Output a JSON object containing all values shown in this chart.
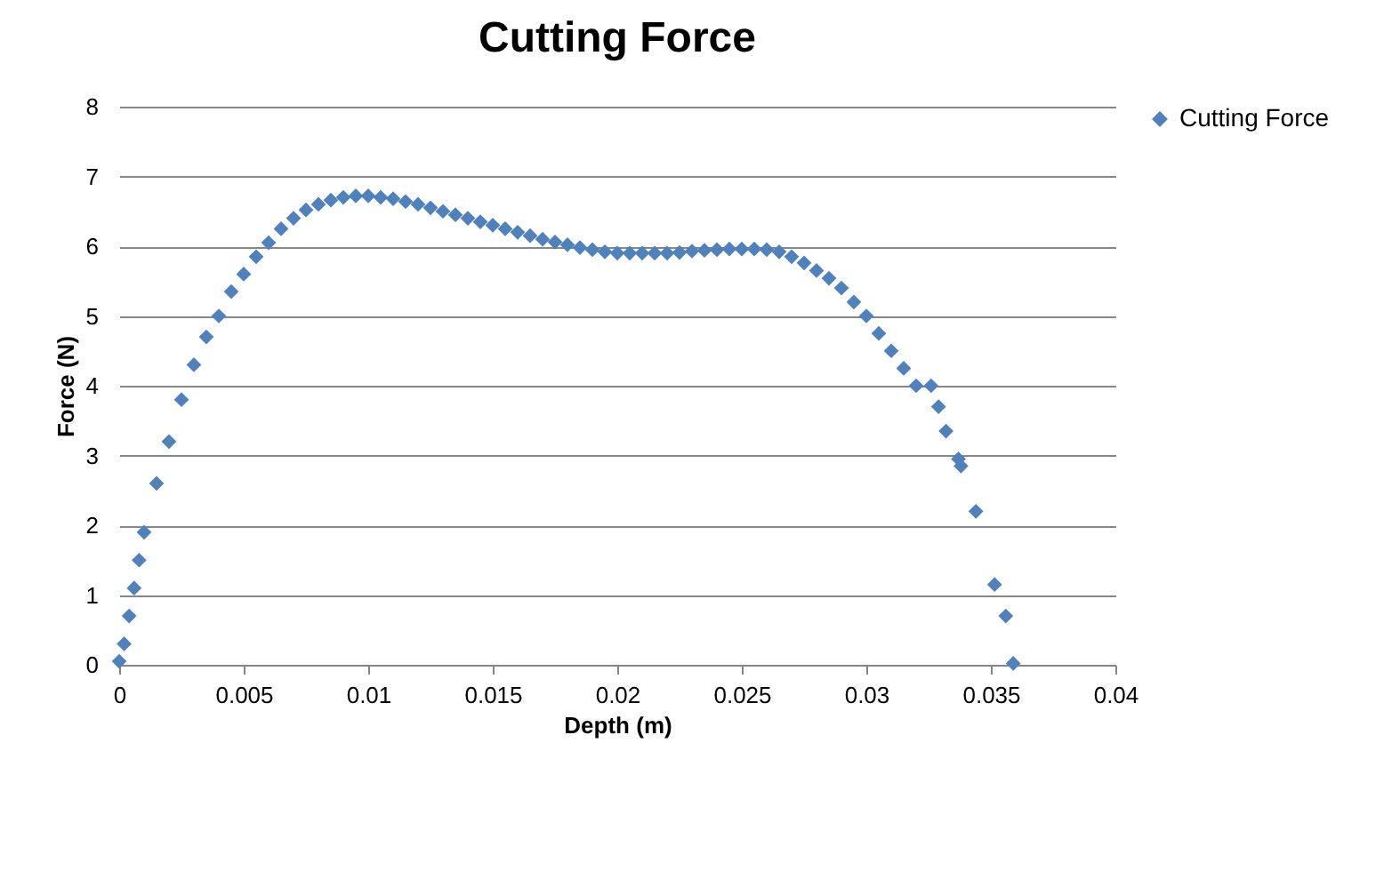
{
  "chart_data": {
    "type": "scatter",
    "title": "Cutting Force",
    "xlabel": "Depth (m)",
    "ylabel": "Force (N)",
    "xlim": [
      0,
      0.04
    ],
    "xticks": [
      0,
      0.005,
      0.01,
      0.015,
      0.02,
      0.025,
      0.03,
      0.035,
      0.04
    ],
    "ylim": [
      0,
      8
    ],
    "yticks": [
      0,
      1,
      2,
      3,
      4,
      5,
      6,
      7,
      8
    ],
    "grid": "y",
    "legend": "right",
    "marker": "diamond",
    "series": [
      {
        "name": "Cutting Force",
        "color": "#4f81bd",
        "x": [
          0,
          0.0002,
          0.0004,
          0.0006,
          0.0008,
          0.001,
          0.0015,
          0.002,
          0.0025,
          0.003,
          0.0035,
          0.004,
          0.0045,
          0.005,
          0.0055,
          0.006,
          0.0065,
          0.007,
          0.0075,
          0.008,
          0.0085,
          0.009,
          0.0095,
          0.01,
          0.0105,
          0.011,
          0.0115,
          0.012,
          0.0125,
          0.013,
          0.0135,
          0.014,
          0.0145,
          0.015,
          0.0155,
          0.016,
          0.0165,
          0.017,
          0.0175,
          0.018,
          0.0185,
          0.019,
          0.0195,
          0.02,
          0.0205,
          0.021,
          0.0215,
          0.022,
          0.0225,
          0.023,
          0.0235,
          0.024,
          0.0245,
          0.025,
          0.0255,
          0.026,
          0.0265,
          0.027,
          0.0275,
          0.028,
          0.0285,
          0.029,
          0.0295,
          0.03,
          0.0305,
          0.031,
          0.0315,
          0.032,
          0.0326,
          0.0329,
          0.0332,
          0.0337,
          0.0338,
          0.0344,
          0.03515,
          0.0356,
          0.0359
        ],
        "values": [
          0.05,
          0.3,
          0.7,
          1.1,
          1.5,
          1.9,
          2.6,
          3.2,
          3.8,
          4.3,
          4.7,
          5.0,
          5.35,
          5.6,
          5.85,
          6.05,
          6.25,
          6.4,
          6.52,
          6.6,
          6.66,
          6.7,
          6.72,
          6.72,
          6.7,
          6.68,
          6.64,
          6.6,
          6.55,
          6.5,
          6.45,
          6.4,
          6.35,
          6.3,
          6.25,
          6.2,
          6.15,
          6.1,
          6.06,
          6.02,
          5.98,
          5.95,
          5.92,
          5.9,
          5.9,
          5.9,
          5.9,
          5.9,
          5.91,
          5.93,
          5.94,
          5.95,
          5.96,
          5.96,
          5.96,
          5.95,
          5.92,
          5.85,
          5.76,
          5.65,
          5.54,
          5.4,
          5.2,
          5.0,
          4.75,
          4.5,
          4.25,
          4.0,
          4.0,
          3.7,
          3.35,
          2.95,
          2.85,
          2.2,
          1.15,
          0.7,
          0.02
        ]
      }
    ]
  }
}
